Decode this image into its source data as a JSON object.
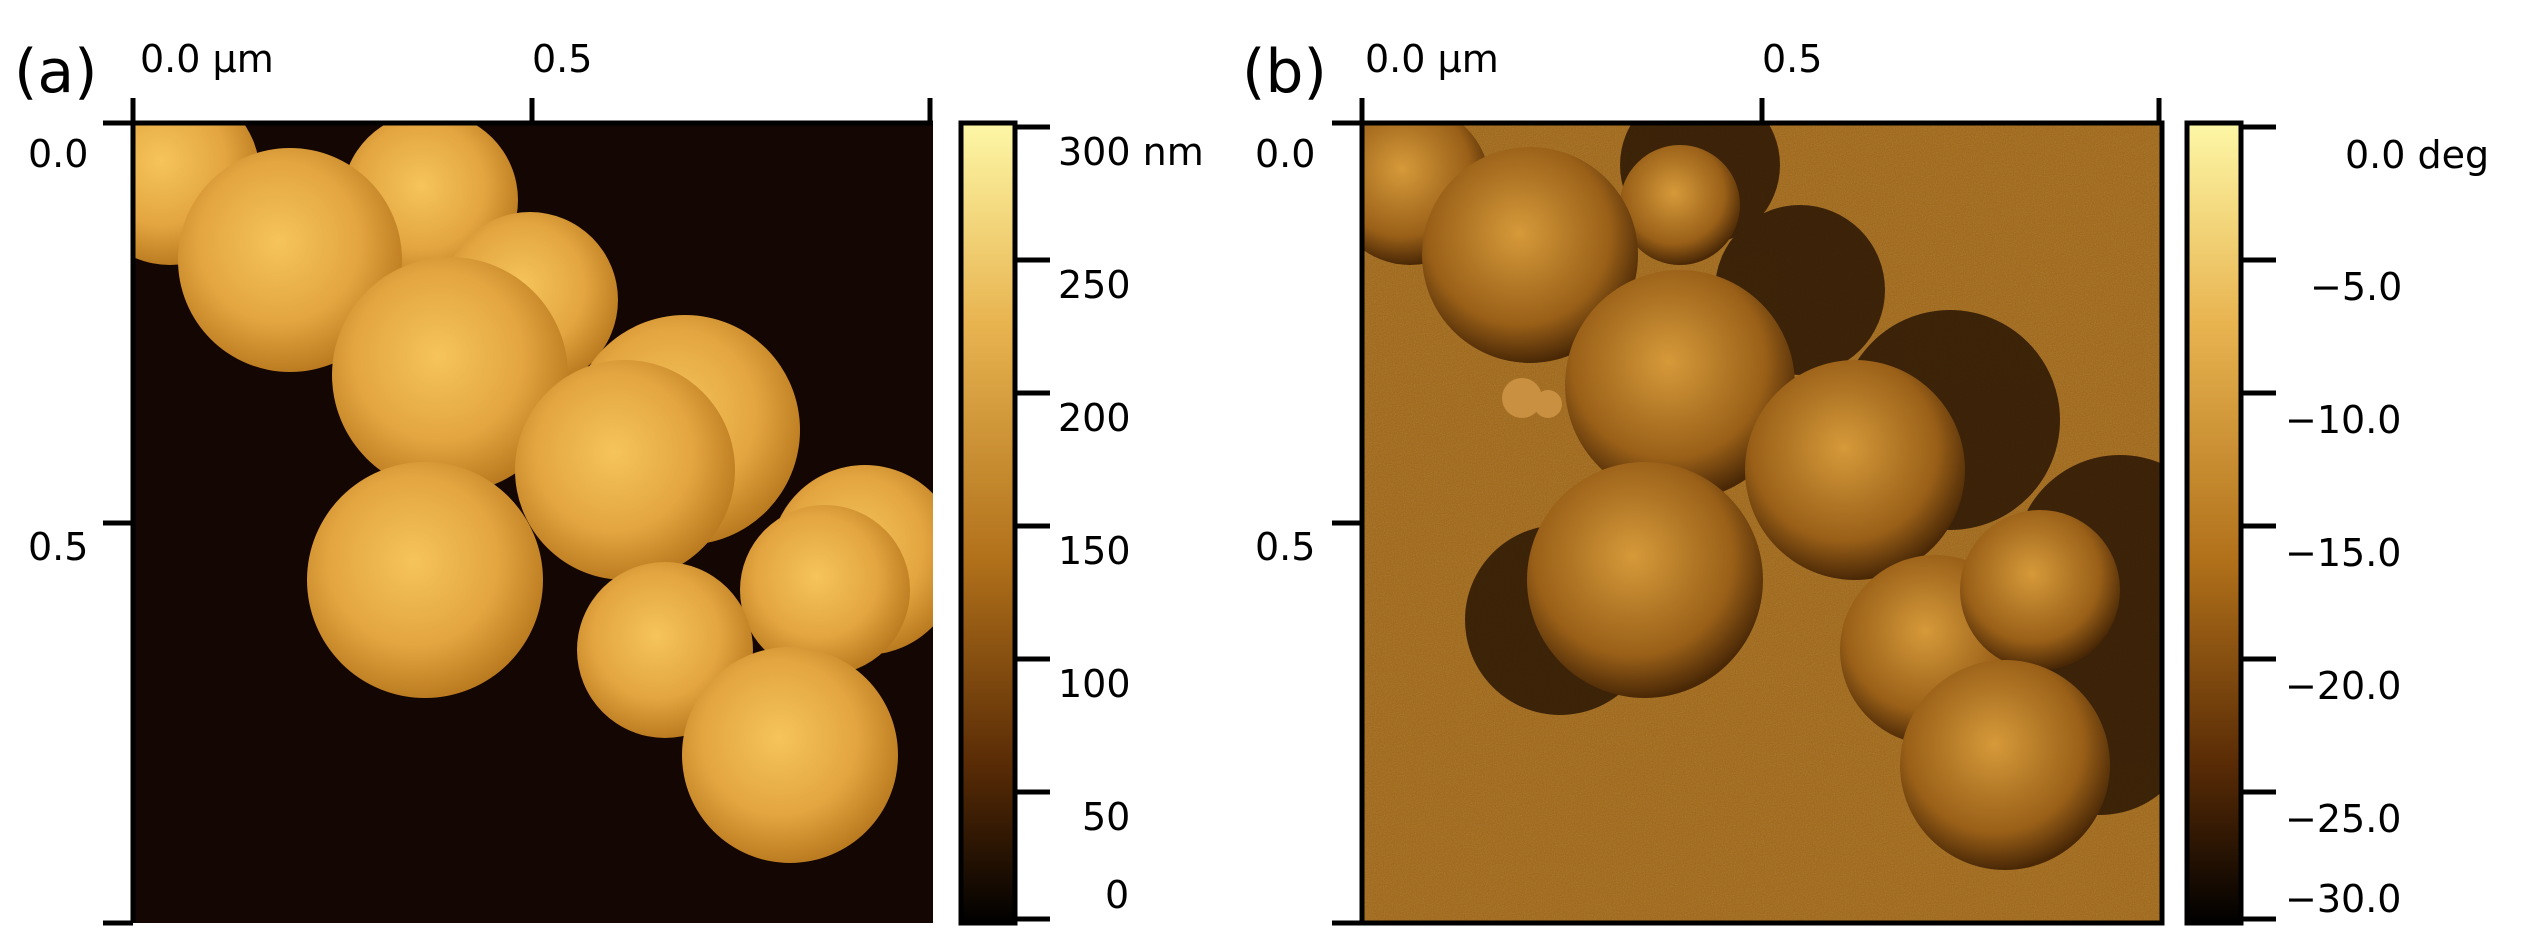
{
  "figure": {
    "panels": [
      {
        "label": "(a)",
        "x_ticks": [
          "0.0 µm",
          "0.5"
        ],
        "y_ticks": [
          "0.0",
          "0.5"
        ],
        "colorbar": {
          "ticks": [
            "300 nm",
            "250",
            "200",
            "150",
            "100",
            "50",
            "0"
          ]
        }
      },
      {
        "label": "(b)",
        "x_ticks": [
          "0.0 µm",
          "0.5"
        ],
        "y_ticks": [
          "0.0",
          "0.5"
        ],
        "colorbar": {
          "ticks": [
            "0.0 deg",
            "−5.0",
            "−10.0",
            "−15.0",
            "−20.0",
            "−25.0",
            "−30.0"
          ]
        }
      }
    ]
  },
  "colors": {
    "background_a": "#140602",
    "background_b": "#a0640f",
    "colormap_top": "#fdf5a0",
    "colormap_mid": "#b0701a",
    "colormap_bottom": "#000000",
    "axis": "#000000"
  }
}
